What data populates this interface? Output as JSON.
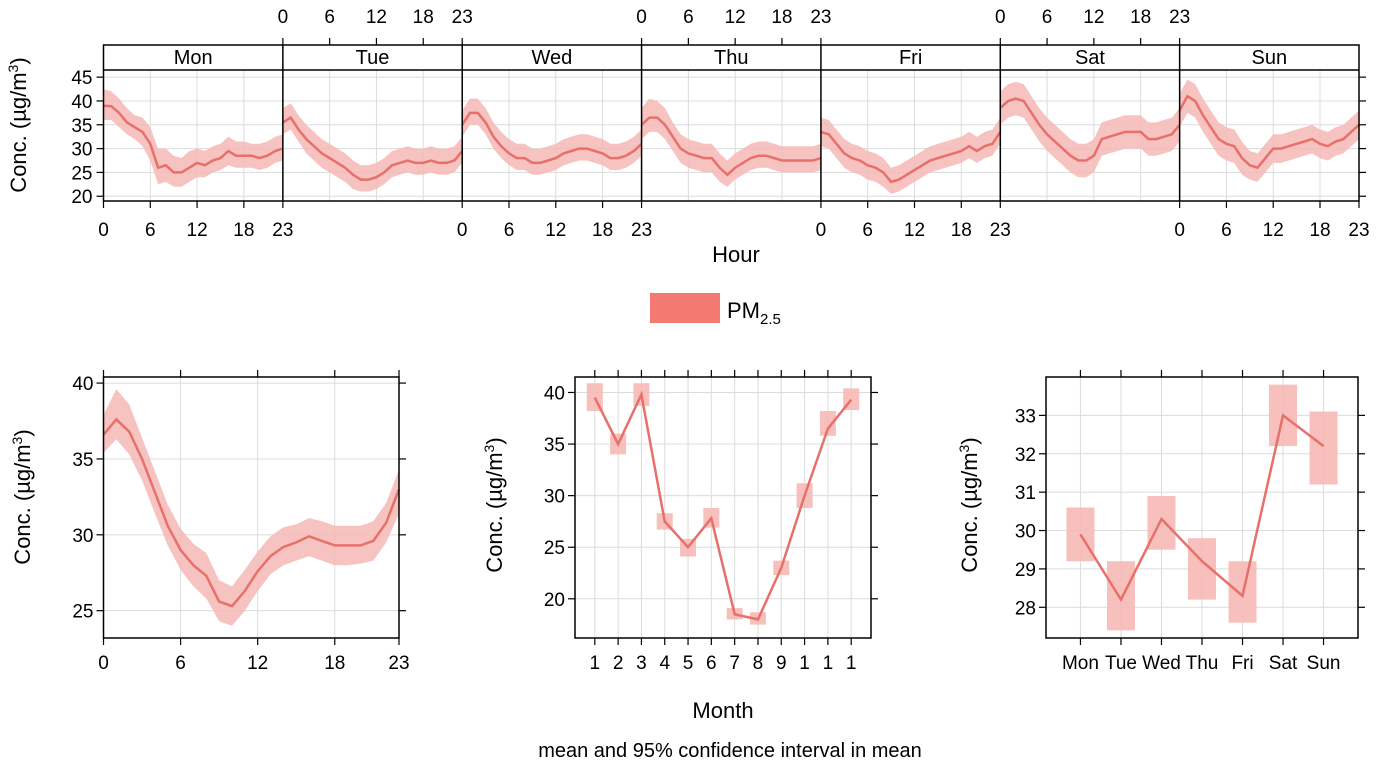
{
  "colors": {
    "line": "#e8706a",
    "band": "#f6b9b5",
    "legend": "#f27a71",
    "grid": "#dcdcdc",
    "strip_bg": "#ffffff"
  },
  "caption": "mean and 95% confidence interval in mean",
  "legend": {
    "label_main": "PM",
    "label_sub": "2.5"
  },
  "chart_data": [
    {
      "id": "hour_weekday",
      "type": "line",
      "panels": [
        "Mon",
        "Tue",
        "Wed",
        "Thu",
        "Fri",
        "Sat",
        "Sun"
      ],
      "xlabel": "Hour",
      "ylabel": "Conc. (µg/m³)",
      "xticks": [
        0,
        6,
        12,
        18,
        23
      ],
      "xlim": [
        0,
        23
      ],
      "yticks": [
        20,
        25,
        30,
        35,
        40,
        45
      ],
      "ylim": [
        19,
        46.5
      ],
      "series": [
        {
          "panel": "Mon",
          "mean": [
            39.0,
            38.9,
            37.5,
            35.5,
            34.5,
            33.5,
            31.0,
            26.0,
            26.5,
            25.0,
            25.0,
            26.0,
            27.0,
            26.5,
            27.5,
            28.0,
            29.5,
            28.5,
            28.5,
            28.5,
            28.0,
            28.5,
            29.5,
            30.0
          ],
          "lower": [
            36.0,
            36.0,
            34.5,
            33.0,
            32.0,
            30.5,
            27.5,
            22.5,
            23.0,
            22.0,
            22.0,
            23.0,
            24.0,
            24.0,
            25.0,
            25.5,
            26.5,
            26.0,
            26.0,
            26.0,
            25.5,
            26.0,
            27.0,
            27.5
          ],
          "upper": [
            42.5,
            42.0,
            40.5,
            38.5,
            37.0,
            36.5,
            34.5,
            30.0,
            30.0,
            28.5,
            28.0,
            29.5,
            30.0,
            29.5,
            30.5,
            31.0,
            32.5,
            31.5,
            31.5,
            31.0,
            31.0,
            31.5,
            32.5,
            33.0
          ]
        },
        {
          "panel": "Tue",
          "mean": [
            35.5,
            36.5,
            34.0,
            32.0,
            30.5,
            29.0,
            28.0,
            27.0,
            26.0,
            24.5,
            23.5,
            23.5,
            24.0,
            25.0,
            26.5,
            27.0,
            27.5,
            27.0,
            27.0,
            27.5,
            27.0,
            27.0,
            27.5,
            29.5
          ],
          "lower": [
            33.0,
            34.0,
            31.5,
            29.0,
            27.5,
            26.0,
            25.0,
            24.0,
            23.0,
            21.5,
            21.0,
            21.0,
            21.5,
            22.5,
            24.0,
            24.5,
            25.0,
            24.5,
            24.5,
            25.0,
            24.5,
            24.5,
            25.0,
            27.0
          ],
          "upper": [
            38.5,
            39.5,
            37.0,
            35.0,
            33.5,
            32.0,
            31.0,
            30.0,
            29.0,
            27.5,
            26.5,
            26.5,
            27.0,
            28.0,
            29.5,
            30.0,
            30.5,
            30.0,
            30.0,
            30.5,
            30.0,
            30.0,
            30.5,
            32.5
          ]
        },
        {
          "panel": "Wed",
          "mean": [
            35.0,
            37.5,
            37.5,
            35.5,
            32.5,
            30.5,
            29.0,
            28.0,
            28.0,
            27.0,
            27.0,
            27.5,
            28.0,
            29.0,
            29.5,
            30.0,
            30.0,
            29.5,
            29.0,
            28.0,
            28.0,
            28.5,
            29.5,
            31.0
          ],
          "lower": [
            32.5,
            35.0,
            35.0,
            33.0,
            30.0,
            28.0,
            26.5,
            25.5,
            25.5,
            24.5,
            24.5,
            25.0,
            25.5,
            26.5,
            27.0,
            27.5,
            27.5,
            27.0,
            26.5,
            25.5,
            25.5,
            26.0,
            27.0,
            28.5
          ],
          "upper": [
            38.0,
            40.5,
            40.5,
            38.5,
            35.5,
            33.5,
            32.0,
            31.0,
            31.0,
            30.0,
            30.0,
            30.5,
            31.0,
            32.0,
            32.5,
            33.0,
            33.0,
            32.5,
            32.0,
            31.0,
            31.0,
            31.5,
            32.5,
            34.0
          ]
        },
        {
          "panel": "Thu",
          "mean": [
            35.0,
            36.5,
            36.5,
            35.0,
            32.5,
            30.0,
            29.0,
            28.5,
            28.0,
            28.0,
            26.0,
            24.5,
            26.0,
            27.0,
            28.0,
            28.5,
            28.5,
            28.0,
            27.5,
            27.5,
            27.5,
            27.5,
            27.5,
            28.0
          ],
          "lower": [
            32.0,
            33.5,
            33.5,
            32.0,
            29.5,
            27.0,
            26.0,
            25.5,
            25.0,
            25.0,
            23.0,
            22.0,
            23.5,
            24.5,
            25.5,
            26.0,
            26.0,
            25.5,
            25.0,
            25.0,
            25.0,
            25.0,
            25.0,
            25.5
          ],
          "upper": [
            38.5,
            40.5,
            40.0,
            38.5,
            35.5,
            33.0,
            32.0,
            31.5,
            31.0,
            31.0,
            29.0,
            27.5,
            29.0,
            30.0,
            31.0,
            31.5,
            31.5,
            31.0,
            30.5,
            30.5,
            30.5,
            30.5,
            30.5,
            31.0
          ],
          "note": ""
        },
        {
          "panel": "Fri",
          "mean": [
            33.5,
            33.0,
            31.0,
            29.0,
            28.0,
            27.5,
            26.5,
            26.0,
            25.0,
            23.0,
            23.5,
            24.5,
            25.5,
            26.5,
            27.5,
            28.0,
            28.5,
            29.0,
            29.5,
            30.5,
            29.5,
            30.5,
            31.0,
            33.5
          ],
          "lower": [
            30.5,
            30.0,
            28.0,
            26.0,
            25.0,
            24.5,
            23.5,
            23.0,
            22.0,
            20.5,
            21.0,
            22.0,
            23.0,
            24.0,
            25.0,
            25.5,
            26.0,
            26.5,
            27.0,
            28.0,
            27.0,
            28.0,
            28.5,
            31.0
          ],
          "upper": [
            36.5,
            36.0,
            34.0,
            32.0,
            31.0,
            30.5,
            29.5,
            29.0,
            28.0,
            26.0,
            26.5,
            27.5,
            28.5,
            29.5,
            30.5,
            31.0,
            31.5,
            32.0,
            32.5,
            33.5,
            32.5,
            33.5,
            34.0,
            36.5
          ]
        },
        {
          "panel": "Sat",
          "mean": [
            38.5,
            40.0,
            40.5,
            40.0,
            37.5,
            35.0,
            33.0,
            31.5,
            30.0,
            28.5,
            27.5,
            27.5,
            28.5,
            32.0,
            32.5,
            33.0,
            33.5,
            33.5,
            33.5,
            32.0,
            32.0,
            32.5,
            33.0,
            35.0
          ],
          "lower": [
            35.0,
            36.5,
            37.0,
            36.5,
            34.0,
            31.5,
            29.5,
            28.0,
            26.5,
            25.0,
            24.0,
            24.0,
            25.0,
            28.5,
            29.0,
            29.5,
            30.0,
            30.0,
            30.0,
            28.5,
            28.5,
            29.0,
            29.5,
            31.5
          ],
          "upper": [
            42.0,
            43.5,
            44.0,
            43.5,
            41.0,
            38.5,
            36.5,
            35.0,
            33.5,
            32.0,
            31.0,
            31.0,
            32.0,
            35.5,
            36.0,
            36.5,
            37.0,
            37.0,
            37.0,
            35.5,
            35.5,
            36.0,
            36.5,
            38.5
          ]
        },
        {
          "panel": "Sun",
          "mean": [
            38.0,
            41.0,
            40.0,
            37.0,
            34.5,
            32.0,
            31.0,
            30.5,
            28.0,
            26.5,
            26.0,
            28.0,
            30.0,
            30.0,
            30.5,
            31.0,
            31.5,
            32.0,
            31.0,
            30.5,
            31.5,
            32.0,
            33.5,
            35.0
          ],
          "lower": [
            34.5,
            37.5,
            36.5,
            33.5,
            31.0,
            28.5,
            27.5,
            27.0,
            24.5,
            23.5,
            23.0,
            25.0,
            27.0,
            27.0,
            27.5,
            28.0,
            28.5,
            29.0,
            28.0,
            27.5,
            28.5,
            29.0,
            30.5,
            32.0
          ],
          "upper": [
            41.5,
            44.5,
            43.5,
            40.5,
            38.0,
            35.5,
            34.5,
            34.0,
            31.5,
            29.5,
            29.0,
            31.0,
            33.0,
            33.0,
            33.5,
            34.0,
            34.5,
            35.0,
            34.0,
            33.5,
            34.5,
            35.0,
            36.5,
            38.0
          ]
        }
      ]
    },
    {
      "id": "hour",
      "type": "line",
      "xlabel": "",
      "ylabel": "Conc. (µg/m³)",
      "xticks": [
        0,
        6,
        12,
        18,
        23
      ],
      "xlim": [
        0,
        23
      ],
      "yticks": [
        25,
        30,
        35,
        40
      ],
      "ylim": [
        23.2,
        40.4
      ],
      "series": [
        {
          "name": "PM2.5",
          "mean": [
            36.6,
            37.6,
            36.8,
            35.0,
            32.8,
            30.6,
            29.0,
            28.0,
            27.3,
            25.6,
            25.3,
            26.3,
            27.6,
            28.6,
            29.2,
            29.5,
            29.9,
            29.6,
            29.3,
            29.3,
            29.3,
            29.6,
            30.8,
            33.0
          ],
          "lower": [
            35.4,
            36.3,
            35.3,
            33.6,
            31.4,
            29.3,
            27.7,
            26.6,
            25.8,
            24.3,
            24.0,
            25.0,
            26.3,
            27.4,
            28.0,
            28.3,
            28.6,
            28.3,
            28.0,
            28.0,
            28.1,
            28.3,
            29.5,
            31.4
          ],
          "upper": [
            37.9,
            39.6,
            38.6,
            36.4,
            34.2,
            32.0,
            30.4,
            29.4,
            28.8,
            27.0,
            26.6,
            27.7,
            28.9,
            29.9,
            30.5,
            30.7,
            31.1,
            30.9,
            30.6,
            30.6,
            30.6,
            30.9,
            32.1,
            34.3
          ]
        }
      ]
    },
    {
      "id": "month",
      "type": "line",
      "xlabel": "Month",
      "ylabel": "Conc. (µg/m³)",
      "categories": [
        "1",
        "2",
        "3",
        "4",
        "5",
        "6",
        "7",
        "8",
        "9",
        "1",
        "1",
        "1"
      ],
      "yticks": [
        20,
        25,
        30,
        35,
        40
      ],
      "ylim": [
        16.2,
        41.5
      ],
      "series": [
        {
          "name": "PM2.5",
          "mean": [
            39.5,
            35.0,
            39.8,
            27.5,
            25.0,
            27.8,
            18.5,
            18.0,
            23.0,
            30.0,
            36.5,
            39.3
          ],
          "lower": [
            38.2,
            34.0,
            38.7,
            26.7,
            24.1,
            26.9,
            18.0,
            17.5,
            22.3,
            28.8,
            35.8,
            38.3
          ],
          "upper": [
            40.9,
            36.0,
            40.9,
            28.3,
            25.8,
            28.8,
            19.1,
            18.7,
            23.7,
            31.2,
            38.2,
            40.4
          ]
        }
      ]
    },
    {
      "id": "weekday",
      "type": "line",
      "xlabel": "",
      "ylabel": "Conc. (µg/m³)",
      "categories": [
        "Mon",
        "Tue",
        "Wed",
        "Thu",
        "Fri",
        "Sat",
        "Sun"
      ],
      "yticks": [
        28,
        29,
        30,
        31,
        32,
        33
      ],
      "ylim": [
        27.2,
        34.0
      ],
      "series": [
        {
          "name": "PM2.5",
          "mean": [
            29.9,
            28.2,
            30.3,
            29.2,
            28.3,
            33.0,
            32.2
          ],
          "lower": [
            29.2,
            27.4,
            29.5,
            28.2,
            27.6,
            32.2,
            31.2
          ],
          "upper": [
            30.6,
            29.2,
            30.9,
            29.8,
            29.2,
            33.8,
            33.1
          ]
        }
      ]
    }
  ]
}
